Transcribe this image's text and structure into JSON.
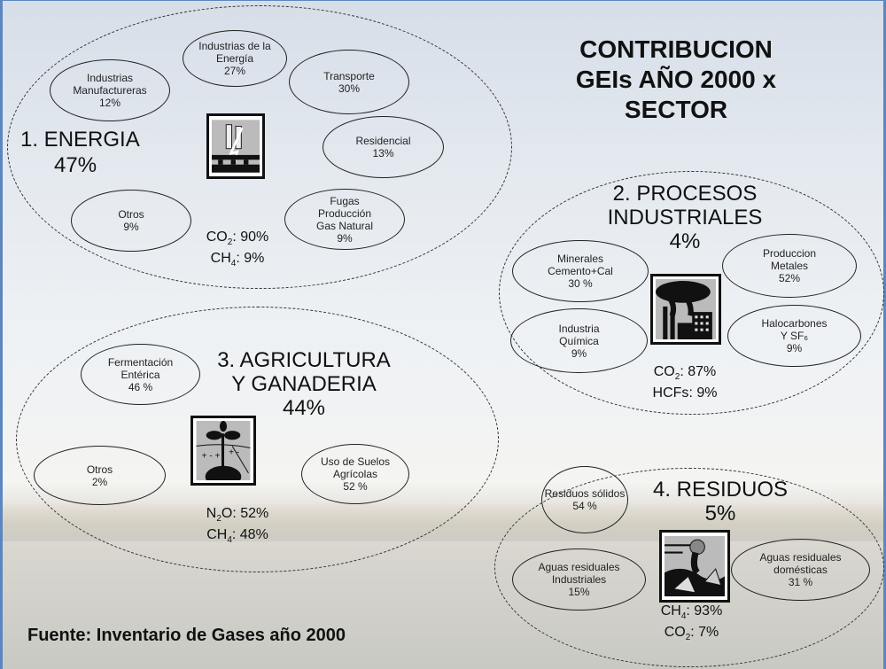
{
  "title": [
    "CONTRIBUCION",
    "GEIs AÑO 2000 x",
    "SECTOR"
  ],
  "source": "Fuente: Inventario de Gases año 2000",
  "sectors": [
    {
      "id": "energia",
      "title": [
        "1. ENERGIA"
      ],
      "percent": "47%",
      "icon": "power-plant-icon",
      "subcategories": [
        {
          "label": [
            "Industrias de la",
            "Energía"
          ],
          "percent": "27%"
        },
        {
          "label": [
            "Industrias",
            "Manufactureras"
          ],
          "percent": "12%"
        },
        {
          "label": [
            "Transporte"
          ],
          "percent": "30%"
        },
        {
          "label": [
            "Residencial"
          ],
          "percent": "13%"
        },
        {
          "label": [
            "Otros"
          ],
          "percent": "9%"
        },
        {
          "label": [
            "Fugas",
            "Producción",
            "Gas Natural"
          ],
          "percent": "9%"
        }
      ],
      "gases": [
        {
          "formula": "CO",
          "sub": "2",
          "value": ": 90%"
        },
        {
          "formula": "CH",
          "sub": "4",
          "value": ": 9%"
        }
      ]
    },
    {
      "id": "procesos-industriales",
      "title": [
        "2. PROCESOS",
        "INDUSTRIALES"
      ],
      "percent": "4%",
      "icon": "factory-icon",
      "subcategories": [
        {
          "label": [
            "Minerales",
            "Cemento+Cal"
          ],
          "percent": "30 %"
        },
        {
          "label": [
            "Produccion",
            "Metales"
          ],
          "percent": "52%"
        },
        {
          "label": [
            "Industria",
            "Química"
          ],
          "percent": "9%"
        },
        {
          "label": [
            "Halocarbones",
            "Y SF₆"
          ],
          "percent": "9%"
        }
      ],
      "gases": [
        {
          "formula": "CO",
          "sub": "2",
          "value": ": 87%"
        },
        {
          "formula": "HCFs",
          "sub": "",
          "value": ": 9%"
        }
      ]
    },
    {
      "id": "agricultura",
      "title": [
        "3. AGRICULTURA",
        "Y GANADERIA"
      ],
      "percent": "44%",
      "icon": "plant-icon",
      "subcategories": [
        {
          "label": [
            "Fermentación",
            "Entérica"
          ],
          "percent": "46 %"
        },
        {
          "label": [
            "Otros"
          ],
          "percent": "2%"
        },
        {
          "label": [
            "Uso de Suelos",
            "Agrícolas"
          ],
          "percent": "52 %"
        }
      ],
      "gases": [
        {
          "formula": "N",
          "sub": "2",
          "value": "O: 52%"
        },
        {
          "formula": "CH",
          "sub": "4",
          "value": ": 48%"
        }
      ]
    },
    {
      "id": "residuos",
      "title": [
        "4. RESIDUOS"
      ],
      "percent": "5%",
      "icon": "waste-icon",
      "subcategories": [
        {
          "label": [
            "Residuos sólidos"
          ],
          "percent": "54 %"
        },
        {
          "label": [
            "Aguas residuales",
            "Industriales"
          ],
          "percent": "15%"
        },
        {
          "label": [
            "Aguas residuales",
            "domésticas"
          ],
          "percent": "31 %"
        }
      ],
      "gases": [
        {
          "formula": "CH",
          "sub": "4",
          "value": ": 93%"
        },
        {
          "formula": "CO",
          "sub": "2",
          "value": ": 7%"
        }
      ]
    }
  ]
}
